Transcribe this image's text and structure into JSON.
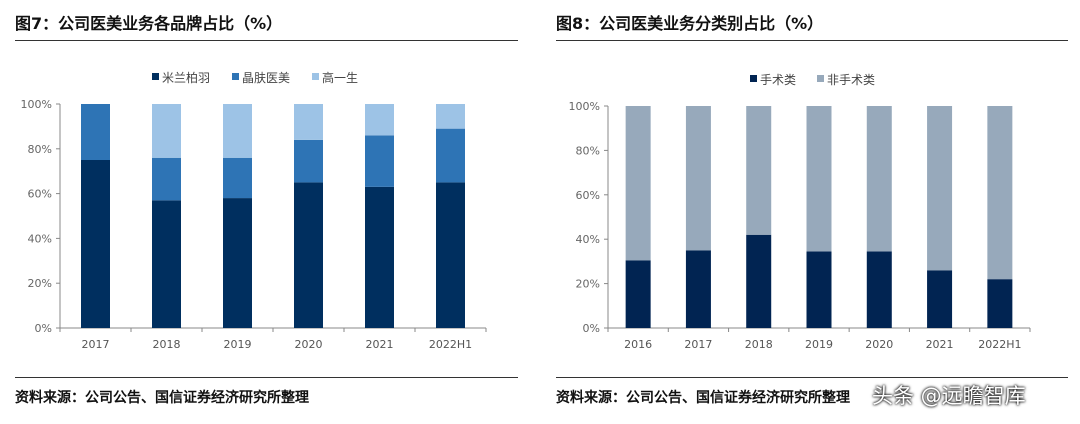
{
  "left": {
    "title": "图7：公司医美业务各品牌占比（%）",
    "source": "资料来源：公司公告、国信证券经济研究所整理"
  },
  "right": {
    "title": "图8：公司医美业务分类别占比（%）",
    "source": "资料来源：公司公告、国信证券经济研究所整理"
  },
  "watermark": "头条 @远瞻智库",
  "chart_data": [
    {
      "type": "bar",
      "stacked": true,
      "categories": [
        "2017",
        "2018",
        "2019",
        "2020",
        "2021",
        "2022H1"
      ],
      "series": [
        {
          "name": "米兰柏羽",
          "color": "#002f5f",
          "values": [
            75,
            57,
            58,
            65,
            63,
            65
          ]
        },
        {
          "name": "晶肤医美",
          "color": "#2e74b5",
          "values": [
            25,
            19,
            18,
            19,
            23,
            24
          ]
        },
        {
          "name": "高一生",
          "color": "#9dc3e6",
          "values": [
            0,
            24,
            24,
            16,
            14,
            11
          ]
        }
      ],
      "ylim": [
        0,
        100
      ],
      "yticks": [
        "0%",
        "20%",
        "40%",
        "60%",
        "80%",
        "100%"
      ],
      "legend": "top",
      "grid": false
    },
    {
      "type": "bar",
      "stacked": true,
      "categories": [
        "2016",
        "2017",
        "2018",
        "2019",
        "2020",
        "2021",
        "2022H1"
      ],
      "series": [
        {
          "name": "手术类",
          "color": "#012452",
          "values": [
            30.5,
            35,
            42,
            34.5,
            34.5,
            26,
            22
          ]
        },
        {
          "name": "非手术类",
          "color": "#97a9bb",
          "values": [
            69.5,
            65,
            58,
            65.5,
            65.5,
            74,
            78
          ]
        }
      ],
      "ylim": [
        0,
        100
      ],
      "yticks": [
        "0%",
        "20%",
        "40%",
        "60%",
        "80%",
        "100%"
      ],
      "legend": "top",
      "grid": false
    }
  ]
}
